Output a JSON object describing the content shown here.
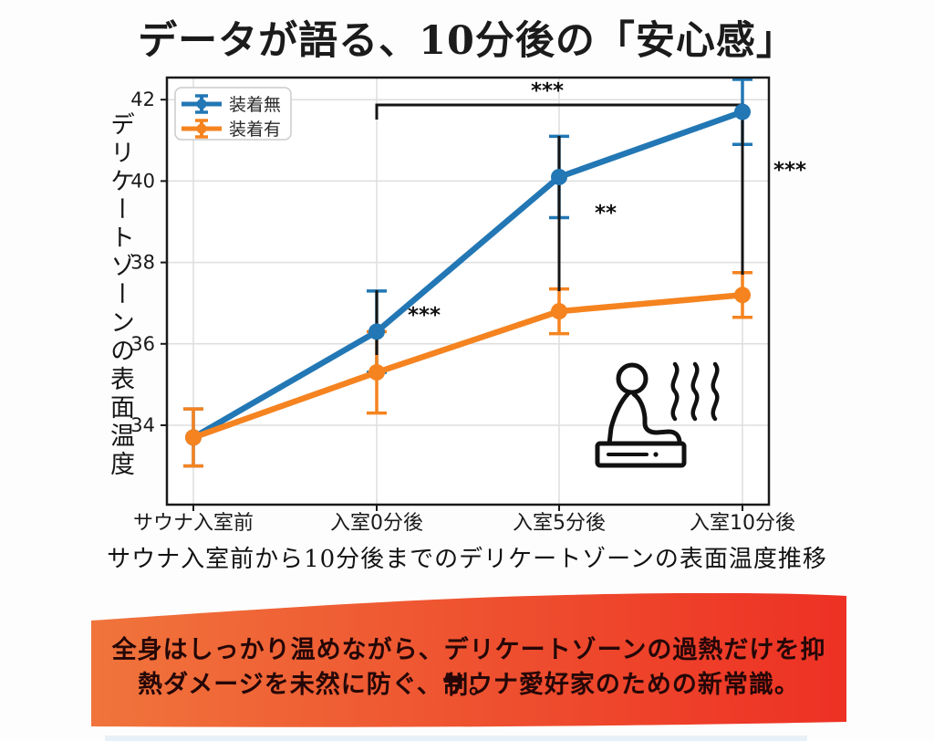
{
  "title": "データが語る、10分後の「安心感」",
  "chart_data": {
    "type": "line",
    "categories": [
      "サウナ入室前",
      "入室0分後",
      "入室5分後",
      "入室10分後"
    ],
    "series": [
      {
        "name": "装着無",
        "color": "#2277b4",
        "values": [
          33.7,
          36.3,
          40.1,
          41.7
        ],
        "errors": [
          0.7,
          1.0,
          1.0,
          0.8
        ]
      },
      {
        "name": "装着有",
        "color": "#f5831f",
        "values": [
          33.7,
          35.3,
          36.8,
          37.2
        ],
        "errors": [
          0.7,
          1.0,
          0.55,
          0.55
        ]
      }
    ],
    "ylabel": "デリケートゾーンの表面温度",
    "xlabel": "",
    "yticks": [
      34,
      36,
      38,
      40,
      42
    ],
    "ylim": [
      32.0,
      42.5
    ],
    "grid": true,
    "legend_position": "upper-left",
    "significance": [
      {
        "label": "***",
        "between": "入室0分後〜入室10分後"
      },
      {
        "label": "***",
        "at": "入室0分後"
      },
      {
        "label": "**",
        "at": "入室5分後"
      },
      {
        "label": "***",
        "at": "入室10分後"
      }
    ],
    "caption": "サウナ入室前から10分後までのデリケートゾーンの表面温度推移"
  },
  "icons": {
    "sauna": "sauna-person-steam-icon"
  },
  "banner": {
    "line1": "全身はしっかり温めながら、デリケートゾーンの過熱だけを抑制。",
    "line2": "熱ダメージを未然に防ぐ、サウナ愛好家のための新常識。",
    "gradient_left": "#f0743c",
    "gradient_right": "#ed3124"
  }
}
